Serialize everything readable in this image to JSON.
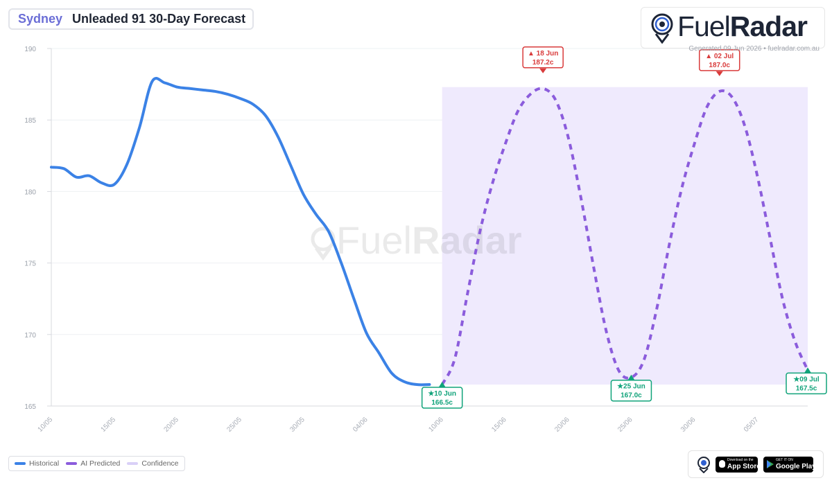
{
  "header": {
    "city": "Sydney",
    "title": "Unleaded 91 30-Day Forecast"
  },
  "brand": {
    "name_light": "Fuel",
    "name_bold": "Radar",
    "watermark_light": "Fuel",
    "watermark_bold": "Radar"
  },
  "generated_text": "Generated 09 Jun 2026 • fuelradar.com.au",
  "legend": [
    {
      "label": "Historical",
      "color": "#3b82e6"
    },
    {
      "label": "AI Predicted",
      "color": "#8b5cdc"
    },
    {
      "label": "Confidence",
      "color": "#d9d0f7"
    }
  ],
  "stores": {
    "app_store_small": "Download on the",
    "app_store": "App Store",
    "google_play_small": "GET IT ON",
    "google_play": "Google Play"
  },
  "colors": {
    "historical": "#3b82e6",
    "predicted": "#8b5cdc",
    "confidence": "#efeafd",
    "low_marker": "#10a37a",
    "high_marker": "#d93b3b"
  },
  "chart_data": {
    "type": "line",
    "ylim": [
      165,
      190
    ],
    "yticks": [
      165,
      170,
      175,
      180,
      185,
      190
    ],
    "xlim": [
      "2026-05-10",
      "2026-07-09"
    ],
    "xticks": [
      "10/05",
      "15/05",
      "20/05",
      "25/05",
      "30/05",
      "04/06",
      "10/06",
      "15/06",
      "20/06",
      "25/06",
      "30/06",
      "05/07"
    ],
    "grid": true,
    "series": [
      {
        "name": "Historical",
        "style": "solid",
        "points": [
          [
            "2026-05-10",
            181.7
          ],
          [
            "2026-05-11",
            181.6
          ],
          [
            "2026-05-12",
            181.0
          ],
          [
            "2026-05-13",
            181.1
          ],
          [
            "2026-05-14",
            180.6
          ],
          [
            "2026-05-15",
            180.5
          ],
          [
            "2026-05-16",
            181.9
          ],
          [
            "2026-05-17",
            184.5
          ],
          [
            "2026-05-18",
            187.7
          ],
          [
            "2026-05-19",
            187.6
          ],
          [
            "2026-05-20",
            187.3
          ],
          [
            "2026-05-21",
            187.2
          ],
          [
            "2026-05-22",
            187.1
          ],
          [
            "2026-05-23",
            187.0
          ],
          [
            "2026-05-24",
            186.8
          ],
          [
            "2026-05-25",
            186.5
          ],
          [
            "2026-05-26",
            186.1
          ],
          [
            "2026-05-27",
            185.3
          ],
          [
            "2026-05-28",
            183.8
          ],
          [
            "2026-05-29",
            181.8
          ],
          [
            "2026-05-30",
            179.8
          ],
          [
            "2026-05-31",
            178.4
          ],
          [
            "2026-06-01",
            177.2
          ],
          [
            "2026-06-02",
            175.0
          ],
          [
            "2026-06-03",
            172.5
          ],
          [
            "2026-06-04",
            170.1
          ],
          [
            "2026-06-05",
            168.7
          ],
          [
            "2026-06-06",
            167.3
          ],
          [
            "2026-06-07",
            166.7
          ],
          [
            "2026-06-08",
            166.5
          ],
          [
            "2026-06-09",
            166.5
          ]
        ]
      },
      {
        "name": "AI Predicted",
        "style": "dashed",
        "points": [
          [
            "2026-06-10",
            166.5
          ],
          [
            "2026-06-11",
            168.3
          ],
          [
            "2026-06-12",
            172.8
          ],
          [
            "2026-06-13",
            177.2
          ],
          [
            "2026-06-14",
            180.6
          ],
          [
            "2026-06-15",
            183.3
          ],
          [
            "2026-06-16",
            185.6
          ],
          [
            "2026-06-17",
            186.8
          ],
          [
            "2026-06-18",
            187.2
          ],
          [
            "2026-06-19",
            186.4
          ],
          [
            "2026-06-20",
            183.8
          ],
          [
            "2026-06-21",
            179.6
          ],
          [
            "2026-06-22",
            174.8
          ],
          [
            "2026-06-23",
            170.3
          ],
          [
            "2026-06-24",
            167.5
          ],
          [
            "2026-06-25",
            167.0
          ],
          [
            "2026-06-26",
            168.2
          ],
          [
            "2026-06-27",
            171.7
          ],
          [
            "2026-06-28",
            176.2
          ],
          [
            "2026-06-29",
            180.2
          ],
          [
            "2026-06-30",
            183.3
          ],
          [
            "2026-07-01",
            185.9
          ],
          [
            "2026-07-02",
            187.0
          ],
          [
            "2026-07-03",
            186.6
          ],
          [
            "2026-07-04",
            184.6
          ],
          [
            "2026-07-05",
            181.1
          ],
          [
            "2026-07-06",
            176.8
          ],
          [
            "2026-07-07",
            172.5
          ],
          [
            "2026-07-08",
            169.5
          ],
          [
            "2026-07-09",
            167.5
          ]
        ]
      }
    ],
    "confidence_band": {
      "x": [
        "2026-06-10",
        "2026-07-09"
      ],
      "y": [
        166.5,
        187.3
      ]
    },
    "annotations": [
      {
        "kind": "low",
        "date": "2026-06-10",
        "value": 166.5,
        "label": "10 Jun",
        "price": "166.5c",
        "glyph": "★"
      },
      {
        "kind": "high",
        "date": "2026-06-18",
        "value": 187.2,
        "label": "18 Jun",
        "price": "187.2c",
        "glyph": "▲"
      },
      {
        "kind": "low",
        "date": "2026-06-25",
        "value": 167.0,
        "label": "25 Jun",
        "price": "167.0c",
        "glyph": "★"
      },
      {
        "kind": "high",
        "date": "2026-07-02",
        "value": 187.0,
        "label": "02 Jul",
        "price": "187.0c",
        "glyph": "▲"
      },
      {
        "kind": "low",
        "date": "2026-07-09",
        "value": 167.5,
        "label": "09 Jul",
        "price": "167.5c",
        "glyph": "★"
      }
    ]
  }
}
